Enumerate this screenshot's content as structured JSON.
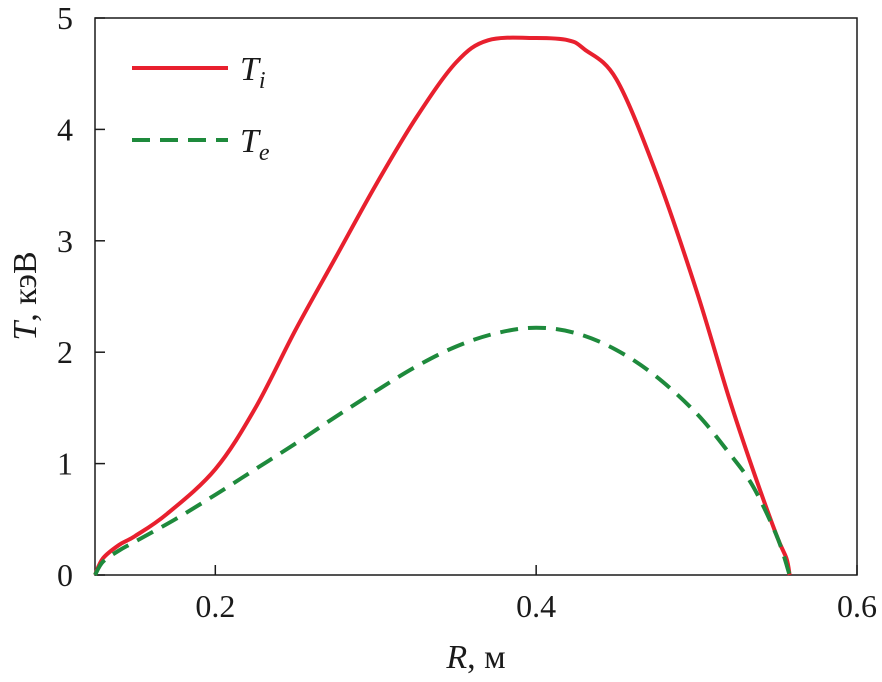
{
  "chart_data": {
    "type": "line",
    "xlabel": "R, м",
    "xlabel_var": "R",
    "xlabel_unit": ", м",
    "ylabel": "T, кэВ",
    "ylabel_var": "T",
    "ylabel_unit": ", кэВ",
    "xlim": [
      0.125,
      0.6
    ],
    "ylim": [
      0,
      5
    ],
    "xticks": [
      0.2,
      0.4,
      0.6
    ],
    "xtick_labels": [
      "0.2",
      "0.4",
      "0.6"
    ],
    "yticks": [
      0,
      1,
      2,
      3,
      4,
      5
    ],
    "ytick_labels": [
      "0",
      "1",
      "2",
      "3",
      "4",
      "5"
    ],
    "grid": false,
    "legend_position": "top-left",
    "series": [
      {
        "name": "Ti",
        "name_main": "T",
        "name_sub": "i",
        "color": "#e8202e",
        "style": "solid",
        "x": [
          0.125,
          0.13,
          0.14,
          0.15,
          0.17,
          0.2,
          0.225,
          0.25,
          0.275,
          0.3,
          0.325,
          0.35,
          0.37,
          0.4,
          0.42,
          0.43,
          0.45,
          0.475,
          0.5,
          0.52,
          0.535,
          0.55,
          0.556,
          0.558
        ],
        "y": [
          0,
          0.15,
          0.27,
          0.35,
          0.55,
          0.95,
          1.5,
          2.2,
          2.85,
          3.5,
          4.1,
          4.6,
          4.8,
          4.82,
          4.8,
          4.72,
          4.45,
          3.6,
          2.55,
          1.6,
          0.95,
          0.35,
          0.15,
          0
        ]
      },
      {
        "name": "Te",
        "name_main": "T",
        "name_sub": "e",
        "color": "#1e8a3c",
        "style": "dashed",
        "x": [
          0.125,
          0.13,
          0.14,
          0.15,
          0.175,
          0.2,
          0.225,
          0.25,
          0.275,
          0.3,
          0.325,
          0.35,
          0.375,
          0.4,
          0.425,
          0.45,
          0.475,
          0.5,
          0.52,
          0.535,
          0.55,
          0.558
        ],
        "y": [
          0,
          0.12,
          0.22,
          0.3,
          0.5,
          0.72,
          0.95,
          1.18,
          1.42,
          1.65,
          1.87,
          2.05,
          2.17,
          2.22,
          2.17,
          2.02,
          1.78,
          1.45,
          1.1,
          0.8,
          0.35,
          0
        ]
      }
    ]
  }
}
